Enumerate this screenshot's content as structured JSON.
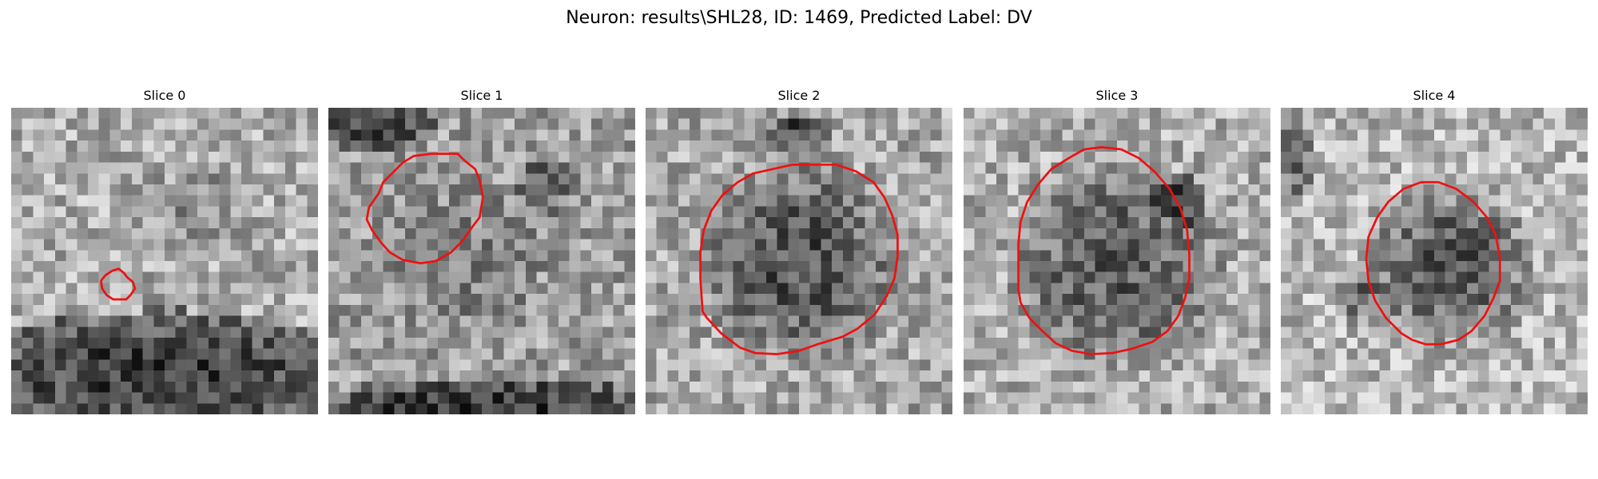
{
  "figure": {
    "title": "Neuron: results\\SHL28, ID: 1469, Predicted Label: DV"
  },
  "colors": {
    "contour": "#ee1111",
    "background": "#ffffff"
  },
  "panels": [
    {
      "title": "Slice 0"
    },
    {
      "title": "Slice 1"
    },
    {
      "title": "Slice 2"
    },
    {
      "title": "Slice 3"
    },
    {
      "title": "Slice 4"
    }
  ]
}
